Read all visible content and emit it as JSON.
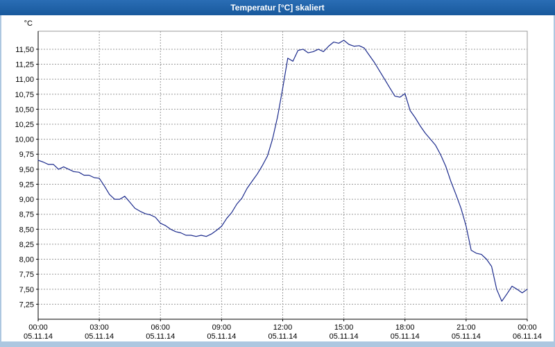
{
  "title_bar": {
    "title": "Temperatur [°C] skaliert"
  },
  "colors": {
    "title_bar_bg": "#18599c",
    "title_bar_bg2": "#2a6db5",
    "line": "#1b2a8c",
    "grid": "#999999",
    "axis": "#000000",
    "frame": "#adc7e0",
    "plot_bg": "#ffffff"
  },
  "chart_data": {
    "type": "line",
    "title": "Temperatur [°C] skaliert",
    "xlabel": "",
    "ylabel": "°C",
    "xlim": [
      0,
      24
    ],
    "ylim": [
      7.0,
      11.8
    ],
    "grid": "dashed",
    "legend": "none",
    "y_ticks": [
      {
        "v": 7.25,
        "label": "7,25"
      },
      {
        "v": 7.5,
        "label": "7,50"
      },
      {
        "v": 7.75,
        "label": "7,75"
      },
      {
        "v": 8.0,
        "label": "8,00"
      },
      {
        "v": 8.25,
        "label": "8,25"
      },
      {
        "v": 8.5,
        "label": "8,50"
      },
      {
        "v": 8.75,
        "label": "8,75"
      },
      {
        "v": 9.0,
        "label": "9,00"
      },
      {
        "v": 9.25,
        "label": "9,25"
      },
      {
        "v": 9.5,
        "label": "9,50"
      },
      {
        "v": 9.75,
        "label": "9,75"
      },
      {
        "v": 10.0,
        "label": "10,00"
      },
      {
        "v": 10.25,
        "label": "10,25"
      },
      {
        "v": 10.5,
        "label": "10,50"
      },
      {
        "v": 10.75,
        "label": "10,75"
      },
      {
        "v": 11.0,
        "label": "11,00"
      },
      {
        "v": 11.25,
        "label": "11,25"
      },
      {
        "v": 11.5,
        "label": "11,50"
      }
    ],
    "x_ticks": [
      {
        "v": 0,
        "time": "00:00",
        "date": "05.11.14"
      },
      {
        "v": 3,
        "time": "03:00",
        "date": "05.11.14"
      },
      {
        "v": 6,
        "time": "06:00",
        "date": "05.11.14"
      },
      {
        "v": 9,
        "time": "09:00",
        "date": "05.11.14"
      },
      {
        "v": 12,
        "time": "12:00",
        "date": "05.11.14"
      },
      {
        "v": 15,
        "time": "15:00",
        "date": "05.11.14"
      },
      {
        "v": 18,
        "time": "18:00",
        "date": "05.11.14"
      },
      {
        "v": 21,
        "time": "21:00",
        "date": "05.11.14"
      },
      {
        "v": 24,
        "time": "00:00",
        "date": "06.11.14"
      }
    ],
    "series_name": "Temperatur",
    "points": [
      [
        0,
        9.65
      ],
      [
        0.25,
        9.62
      ],
      [
        0.5,
        9.58
      ],
      [
        0.75,
        9.58
      ],
      [
        1,
        9.5
      ],
      [
        1.25,
        9.54
      ],
      [
        1.5,
        9.5
      ],
      [
        1.75,
        9.46
      ],
      [
        2,
        9.45
      ],
      [
        2.25,
        9.4
      ],
      [
        2.5,
        9.4
      ],
      [
        2.75,
        9.36
      ],
      [
        3,
        9.35
      ],
      [
        3.25,
        9.22
      ],
      [
        3.5,
        9.08
      ],
      [
        3.75,
        9.0
      ],
      [
        4,
        9.0
      ],
      [
        4.25,
        9.05
      ],
      [
        4.5,
        8.95
      ],
      [
        4.75,
        8.85
      ],
      [
        5,
        8.8
      ],
      [
        5.25,
        8.76
      ],
      [
        5.5,
        8.74
      ],
      [
        5.75,
        8.7
      ],
      [
        6,
        8.6
      ],
      [
        6.25,
        8.56
      ],
      [
        6.5,
        8.5
      ],
      [
        6.75,
        8.46
      ],
      [
        7,
        8.44
      ],
      [
        7.25,
        8.4
      ],
      [
        7.5,
        8.4
      ],
      [
        7.75,
        8.38
      ],
      [
        8,
        8.4
      ],
      [
        8.25,
        8.38
      ],
      [
        8.5,
        8.42
      ],
      [
        8.75,
        8.48
      ],
      [
        9,
        8.55
      ],
      [
        9.25,
        8.68
      ],
      [
        9.5,
        8.78
      ],
      [
        9.75,
        8.92
      ],
      [
        10,
        9.02
      ],
      [
        10.25,
        9.18
      ],
      [
        10.5,
        9.3
      ],
      [
        10.75,
        9.42
      ],
      [
        11,
        9.56
      ],
      [
        11.25,
        9.72
      ],
      [
        11.5,
        10.0
      ],
      [
        11.75,
        10.38
      ],
      [
        12,
        10.85
      ],
      [
        12.25,
        11.35
      ],
      [
        12.5,
        11.3
      ],
      [
        12.75,
        11.48
      ],
      [
        13,
        11.5
      ],
      [
        13.25,
        11.44
      ],
      [
        13.5,
        11.46
      ],
      [
        13.75,
        11.5
      ],
      [
        14,
        11.46
      ],
      [
        14.25,
        11.55
      ],
      [
        14.5,
        11.62
      ],
      [
        14.75,
        11.6
      ],
      [
        15,
        11.65
      ],
      [
        15.25,
        11.58
      ],
      [
        15.5,
        11.55
      ],
      [
        15.75,
        11.56
      ],
      [
        16,
        11.52
      ],
      [
        16.25,
        11.4
      ],
      [
        16.5,
        11.28
      ],
      [
        16.75,
        11.14
      ],
      [
        17,
        11.0
      ],
      [
        17.25,
        10.86
      ],
      [
        17.5,
        10.72
      ],
      [
        17.75,
        10.7
      ],
      [
        18,
        10.76
      ],
      [
        18.25,
        10.48
      ],
      [
        18.5,
        10.36
      ],
      [
        18.75,
        10.22
      ],
      [
        19,
        10.1
      ],
      [
        19.25,
        10.0
      ],
      [
        19.5,
        9.9
      ],
      [
        19.75,
        9.74
      ],
      [
        20,
        9.55
      ],
      [
        20.25,
        9.3
      ],
      [
        20.5,
        9.08
      ],
      [
        20.75,
        8.85
      ],
      [
        21,
        8.55
      ],
      [
        21.25,
        8.15
      ],
      [
        21.5,
        8.1
      ],
      [
        21.75,
        8.08
      ],
      [
        22,
        8.0
      ],
      [
        22.25,
        7.88
      ],
      [
        22.5,
        7.5
      ],
      [
        22.75,
        7.3
      ],
      [
        23,
        7.42
      ],
      [
        23.25,
        7.55
      ],
      [
        23.5,
        7.5
      ],
      [
        23.75,
        7.44
      ],
      [
        24,
        7.5
      ]
    ]
  }
}
